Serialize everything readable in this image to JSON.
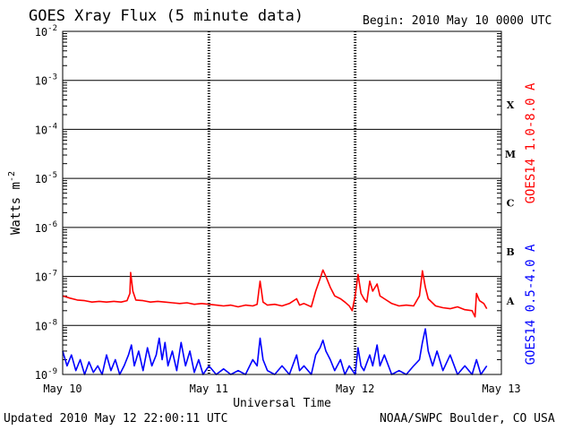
{
  "header": {
    "title": "GOES Xray Flux (5 minute data)",
    "begin": "Begin:  2010 May 10 0000 UTC"
  },
  "footer": {
    "updated": "Updated 2010 May 12 22:00:11 UTC",
    "credit": "NOAA/SWPC Boulder, CO USA"
  },
  "colors": {
    "long_channel": "#ff0000",
    "short_channel": "#0000ff",
    "axes": "#000000",
    "background": "#ffffff"
  },
  "chart_data": {
    "type": "line",
    "title": "GOES Xray Flux (5 minute data)",
    "xlabel": "Universal Time",
    "ylabel": "Watts m-2",
    "ylabel_parts": {
      "base": "Watts m",
      "exponent": "-2"
    },
    "y_scale": "log",
    "ylim": [
      1e-09,
      0.01
    ],
    "y_ticks": [
      {
        "value": 1e-09,
        "base": "10",
        "exp": "-9"
      },
      {
        "value": 1e-08,
        "base": "10",
        "exp": "-8"
      },
      {
        "value": 1e-07,
        "base": "10",
        "exp": "-7"
      },
      {
        "value": 1e-06,
        "base": "10",
        "exp": "-6"
      },
      {
        "value": 1e-05,
        "base": "10",
        "exp": "-5"
      },
      {
        "value": 0.0001,
        "base": "10",
        "exp": "-4"
      },
      {
        "value": 0.001,
        "base": "10",
        "exp": "-3"
      },
      {
        "value": 0.01,
        "base": "10",
        "exp": "-2"
      }
    ],
    "xlim": [
      0,
      3
    ],
    "x_unit": "days since 2010 May 10 00:00 UTC",
    "x_ticks": [
      {
        "value": 0,
        "label": "May 10"
      },
      {
        "value": 1,
        "label": "May 11"
      },
      {
        "value": 2,
        "label": "May 12"
      },
      {
        "value": 3,
        "label": "May 13"
      }
    ],
    "flare_classes": [
      {
        "label": "A",
        "low": 1e-08,
        "high": 1e-07
      },
      {
        "label": "B",
        "low": 1e-07,
        "high": 1e-06
      },
      {
        "label": "C",
        "low": 1e-06,
        "high": 1e-05
      },
      {
        "label": "M",
        "low": 1e-05,
        "high": 0.0001
      },
      {
        "label": "X",
        "low": 0.0001,
        "high": 0.001
      }
    ],
    "grid": "horizontal lines at each decade; dashed tick columns at day boundaries",
    "series": [
      {
        "name": "GOES14 1.0-8.0 A",
        "color": "#ff0000",
        "points": [
          [
            0.0,
            4e-08
          ],
          [
            0.05,
            3.6e-08
          ],
          [
            0.1,
            3.3e-08
          ],
          [
            0.15,
            3.2e-08
          ],
          [
            0.2,
            3e-08
          ],
          [
            0.25,
            3.1e-08
          ],
          [
            0.3,
            3e-08
          ],
          [
            0.35,
            3.1e-08
          ],
          [
            0.4,
            3e-08
          ],
          [
            0.44,
            3.2e-08
          ],
          [
            0.46,
            4.5e-08
          ],
          [
            0.465,
            1.2e-07
          ],
          [
            0.48,
            5e-08
          ],
          [
            0.5,
            3.3e-08
          ],
          [
            0.55,
            3.2e-08
          ],
          [
            0.6,
            3e-08
          ],
          [
            0.65,
            3.1e-08
          ],
          [
            0.7,
            3e-08
          ],
          [
            0.75,
            2.9e-08
          ],
          [
            0.8,
            2.8e-08
          ],
          [
            0.85,
            2.9e-08
          ],
          [
            0.9,
            2.7e-08
          ],
          [
            0.95,
            2.8e-08
          ],
          [
            1.0,
            2.7e-08
          ],
          [
            1.05,
            2.6e-08
          ],
          [
            1.1,
            2.5e-08
          ],
          [
            1.15,
            2.6e-08
          ],
          [
            1.2,
            2.4e-08
          ],
          [
            1.25,
            2.6e-08
          ],
          [
            1.3,
            2.5e-08
          ],
          [
            1.33,
            2.7e-08
          ],
          [
            1.35,
            8e-08
          ],
          [
            1.37,
            3e-08
          ],
          [
            1.4,
            2.6e-08
          ],
          [
            1.45,
            2.7e-08
          ],
          [
            1.5,
            2.5e-08
          ],
          [
            1.55,
            2.8e-08
          ],
          [
            1.6,
            3.5e-08
          ],
          [
            1.62,
            2.6e-08
          ],
          [
            1.65,
            2.8e-08
          ],
          [
            1.7,
            2.4e-08
          ],
          [
            1.73,
            5e-08
          ],
          [
            1.76,
            9e-08
          ],
          [
            1.78,
            1.35e-07
          ],
          [
            1.8,
            1e-07
          ],
          [
            1.83,
            6e-08
          ],
          [
            1.86,
            4e-08
          ],
          [
            1.9,
            3.5e-08
          ],
          [
            1.93,
            3e-08
          ],
          [
            1.96,
            2.5e-08
          ],
          [
            1.98,
            2e-08
          ],
          [
            2.0,
            4e-08
          ],
          [
            2.02,
            1.1e-07
          ],
          [
            2.04,
            4.5e-08
          ],
          [
            2.06,
            3.5e-08
          ],
          [
            2.08,
            3e-08
          ],
          [
            2.1,
            8e-08
          ],
          [
            2.12,
            5e-08
          ],
          [
            2.15,
            7e-08
          ],
          [
            2.17,
            4e-08
          ],
          [
            2.2,
            3.5e-08
          ],
          [
            2.25,
            2.8e-08
          ],
          [
            2.3,
            2.5e-08
          ],
          [
            2.35,
            2.6e-08
          ],
          [
            2.4,
            2.5e-08
          ],
          [
            2.44,
            4e-08
          ],
          [
            2.46,
            1.3e-07
          ],
          [
            2.48,
            6e-08
          ],
          [
            2.5,
            3.5e-08
          ],
          [
            2.55,
            2.5e-08
          ],
          [
            2.6,
            2.3e-08
          ],
          [
            2.65,
            2.2e-08
          ],
          [
            2.7,
            2.4e-08
          ],
          [
            2.75,
            2.1e-08
          ],
          [
            2.8,
            2e-08
          ],
          [
            2.82,
            1.5e-08
          ],
          [
            2.83,
            4.5e-08
          ],
          [
            2.85,
            3.2e-08
          ],
          [
            2.88,
            2.8e-08
          ],
          [
            2.9,
            2.2e-08
          ]
        ]
      },
      {
        "name": "GOES14 0.5-4.0 A",
        "color": "#0000ff",
        "points": [
          [
            0.0,
            3e-09
          ],
          [
            0.03,
            1.5e-09
          ],
          [
            0.06,
            2.5e-09
          ],
          [
            0.09,
            1.2e-09
          ],
          [
            0.12,
            2e-09
          ],
          [
            0.15,
            1e-09
          ],
          [
            0.18,
            1.8e-09
          ],
          [
            0.21,
            1.1e-09
          ],
          [
            0.24,
            1.5e-09
          ],
          [
            0.27,
            1e-09
          ],
          [
            0.3,
            2.5e-09
          ],
          [
            0.33,
            1.2e-09
          ],
          [
            0.36,
            2e-09
          ],
          [
            0.39,
            1e-09
          ],
          [
            0.42,
            1.5e-09
          ],
          [
            0.45,
            2.5e-09
          ],
          [
            0.47,
            4e-09
          ],
          [
            0.49,
            1.5e-09
          ],
          [
            0.52,
            3e-09
          ],
          [
            0.55,
            1.2e-09
          ],
          [
            0.58,
            3.5e-09
          ],
          [
            0.61,
            1.5e-09
          ],
          [
            0.64,
            2.5e-09
          ],
          [
            0.66,
            5.5e-09
          ],
          [
            0.68,
            2e-09
          ],
          [
            0.7,
            4.5e-09
          ],
          [
            0.72,
            1.5e-09
          ],
          [
            0.75,
            3e-09
          ],
          [
            0.78,
            1.2e-09
          ],
          [
            0.81,
            4.5e-09
          ],
          [
            0.84,
            1.5e-09
          ],
          [
            0.87,
            3e-09
          ],
          [
            0.9,
            1.1e-09
          ],
          [
            0.93,
            2e-09
          ],
          [
            0.96,
            1e-09
          ],
          [
            1.0,
            1.5e-09
          ],
          [
            1.05,
            1e-09
          ],
          [
            1.1,
            1.3e-09
          ],
          [
            1.15,
            1e-09
          ],
          [
            1.2,
            1.2e-09
          ],
          [
            1.25,
            1e-09
          ],
          [
            1.3,
            2e-09
          ],
          [
            1.33,
            1.5e-09
          ],
          [
            1.35,
            5.5e-09
          ],
          [
            1.37,
            2e-09
          ],
          [
            1.4,
            1.2e-09
          ],
          [
            1.45,
            1e-09
          ],
          [
            1.5,
            1.5e-09
          ],
          [
            1.55,
            1e-09
          ],
          [
            1.6,
            2.5e-09
          ],
          [
            1.62,
            1.2e-09
          ],
          [
            1.65,
            1.5e-09
          ],
          [
            1.7,
            1e-09
          ],
          [
            1.73,
            2.5e-09
          ],
          [
            1.76,
            3.5e-09
          ],
          [
            1.78,
            5e-09
          ],
          [
            1.8,
            3e-09
          ],
          [
            1.83,
            2e-09
          ],
          [
            1.86,
            1.2e-09
          ],
          [
            1.9,
            2e-09
          ],
          [
            1.93,
            1e-09
          ],
          [
            1.96,
            1.5e-09
          ],
          [
            2.0,
            1e-09
          ],
          [
            2.02,
            3.5e-09
          ],
          [
            2.04,
            1.5e-09
          ],
          [
            2.06,
            1.2e-09
          ],
          [
            2.1,
            2.5e-09
          ],
          [
            2.12,
            1.5e-09
          ],
          [
            2.15,
            4e-09
          ],
          [
            2.17,
            1.5e-09
          ],
          [
            2.2,
            2.5e-09
          ],
          [
            2.25,
            1e-09
          ],
          [
            2.3,
            1.2e-09
          ],
          [
            2.35,
            1e-09
          ],
          [
            2.4,
            1.5e-09
          ],
          [
            2.44,
            2e-09
          ],
          [
            2.46,
            4.5e-09
          ],
          [
            2.48,
            8.5e-09
          ],
          [
            2.5,
            3e-09
          ],
          [
            2.53,
            1.5e-09
          ],
          [
            2.56,
            3e-09
          ],
          [
            2.6,
            1.2e-09
          ],
          [
            2.65,
            2.5e-09
          ],
          [
            2.7,
            1e-09
          ],
          [
            2.75,
            1.5e-09
          ],
          [
            2.8,
            1e-09
          ],
          [
            2.83,
            2e-09
          ],
          [
            2.86,
            1e-09
          ],
          [
            2.9,
            1.5e-09
          ]
        ]
      }
    ]
  }
}
